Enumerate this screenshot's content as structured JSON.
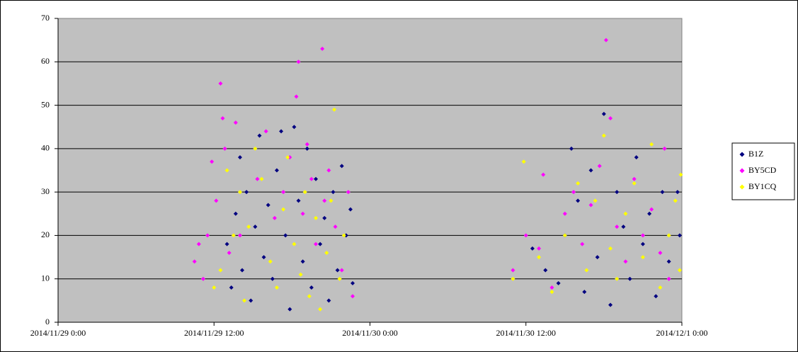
{
  "chart_data": {
    "type": "scatter",
    "xlim": [
      "2014/11/29 0:00",
      "2014/12/1 0:00"
    ],
    "xticks": [
      "2014/11/29 0:00",
      "2014/11/29 12:00",
      "2014/11/30 0:00",
      "2014/11/30 12:00",
      "2014/12/1 0:00"
    ],
    "ylim": [
      0,
      70
    ],
    "yticks": [
      0,
      10,
      20,
      30,
      40,
      50,
      60,
      70
    ],
    "grid": true,
    "legend": "right",
    "series": [
      {
        "name": "B1Z",
        "color": "#000080",
        "x": [
          "2014/11/29 13:00",
          "2014/11/29 13:20",
          "2014/11/29 13:40",
          "2014/11/29 14:00",
          "2014/11/29 14:10",
          "2014/11/29 14:30",
          "2014/11/29 14:50",
          "2014/11/29 15:10",
          "2014/11/29 15:30",
          "2014/11/29 15:50",
          "2014/11/29 16:10",
          "2014/11/29 16:30",
          "2014/11/29 16:50",
          "2014/11/29 17:10",
          "2014/11/29 17:30",
          "2014/11/29 17:50",
          "2014/11/29 18:10",
          "2014/11/29 18:30",
          "2014/11/29 18:50",
          "2014/11/29 19:10",
          "2014/11/29 19:30",
          "2014/11/29 19:50",
          "2014/11/29 20:10",
          "2014/11/29 20:30",
          "2014/11/29 20:50",
          "2014/11/29 21:10",
          "2014/11/29 21:30",
          "2014/11/29 21:50",
          "2014/11/29 22:10",
          "2014/11/29 22:30",
          "2014/11/29 22:40",
          "2014/11/30 12:30",
          "2014/11/30 13:30",
          "2014/11/30 14:30",
          "2014/11/30 15:00",
          "2014/11/30 15:30",
          "2014/11/30 16:00",
          "2014/11/30 16:30",
          "2014/11/30 17:00",
          "2014/11/30 17:30",
          "2014/11/30 18:00",
          "2014/11/30 18:30",
          "2014/11/30 19:00",
          "2014/11/30 19:30",
          "2014/11/30 20:00",
          "2014/11/30 20:30",
          "2014/11/30 21:00",
          "2014/11/30 21:30",
          "2014/11/30 22:00",
          "2014/11/30 22:30",
          "2014/11/30 23:00",
          "2014/11/30 23:40",
          "2014/11/30 23:50"
        ],
        "values": [
          18,
          8,
          25,
          38,
          12,
          30,
          5,
          22,
          43,
          15,
          27,
          10,
          35,
          44,
          20,
          3,
          45,
          28,
          14,
          40,
          8,
          33,
          18,
          24,
          5,
          30,
          12,
          36,
          20,
          26,
          9,
          17,
          12,
          9,
          20,
          40,
          28,
          7,
          35,
          15,
          48,
          4,
          30,
          22,
          10,
          38,
          18,
          25,
          6,
          30,
          14,
          30,
          20
        ]
      },
      {
        "name": "BY5CD",
        "color": "#ff00ff",
        "x": [
          "2014/11/29 10:30",
          "2014/11/29 10:50",
          "2014/11/29 11:10",
          "2014/11/29 11:30",
          "2014/11/29 11:50",
          "2014/11/29 12:10",
          "2014/11/29 12:30",
          "2014/11/29 12:40",
          "2014/11/29 12:50",
          "2014/11/29 13:10",
          "2014/11/29 13:40",
          "2014/11/29 14:00",
          "2014/11/29 15:20",
          "2014/11/29 16:00",
          "2014/11/29 16:40",
          "2014/11/29 17:20",
          "2014/11/29 17:50",
          "2014/11/29 18:20",
          "2014/11/29 18:30",
          "2014/11/29 18:50",
          "2014/11/29 19:10",
          "2014/11/29 19:30",
          "2014/11/29 19:50",
          "2014/11/29 20:20",
          "2014/11/29 20:30",
          "2014/11/29 20:50",
          "2014/11/29 21:20",
          "2014/11/29 21:50",
          "2014/11/29 22:20",
          "2014/11/29 22:40",
          "2014/11/30 11:00",
          "2014/11/30 12:00",
          "2014/11/30 13:00",
          "2014/11/30 13:20",
          "2014/11/30 14:00",
          "2014/11/30 15:00",
          "2014/11/30 15:40",
          "2014/11/30 16:20",
          "2014/11/30 17:00",
          "2014/11/30 17:40",
          "2014/11/30 18:10",
          "2014/11/30 18:30",
          "2014/11/30 19:00",
          "2014/11/30 19:40",
          "2014/11/30 20:20",
          "2014/11/30 21:00",
          "2014/11/30 21:40",
          "2014/11/30 22:20",
          "2014/11/30 22:40",
          "2014/11/30 23:00"
        ],
        "values": [
          14,
          18,
          10,
          20,
          37,
          28,
          55,
          47,
          40,
          16,
          46,
          20,
          33,
          44,
          24,
          30,
          38,
          52,
          60,
          25,
          41,
          33,
          18,
          63,
          28,
          35,
          22,
          12,
          30,
          6,
          12,
          20,
          17,
          34,
          8,
          25,
          30,
          18,
          27,
          36,
          65,
          47,
          22,
          14,
          33,
          20,
          26,
          16,
          40,
          10
        ]
      },
      {
        "name": "BY1CQ",
        "color": "#ffff00",
        "x": [
          "2014/11/29 12:00",
          "2014/11/29 12:30",
          "2014/11/29 13:00",
          "2014/11/29 13:30",
          "2014/11/29 14:00",
          "2014/11/29 14:20",
          "2014/11/29 14:40",
          "2014/11/29 15:10",
          "2014/11/29 15:40",
          "2014/11/29 16:20",
          "2014/11/29 16:50",
          "2014/11/29 17:20",
          "2014/11/29 17:40",
          "2014/11/29 18:10",
          "2014/11/29 18:40",
          "2014/11/29 19:00",
          "2014/11/29 19:20",
          "2014/11/29 19:50",
          "2014/11/29 20:10",
          "2014/11/29 20:40",
          "2014/11/29 21:00",
          "2014/11/29 21:15",
          "2014/11/29 21:40",
          "2014/11/29 22:00",
          "2014/11/30 11:00",
          "2014/11/30 11:50",
          "2014/11/30 13:00",
          "2014/11/30 14:00",
          "2014/11/30 15:00",
          "2014/11/30 16:00",
          "2014/11/30 16:40",
          "2014/11/30 17:20",
          "2014/11/30 18:00",
          "2014/11/30 18:30",
          "2014/11/30 19:00",
          "2014/11/30 19:40",
          "2014/11/30 20:20",
          "2014/11/30 21:00",
          "2014/11/30 21:40",
          "2014/11/30 22:20",
          "2014/11/30 23:00",
          "2014/11/30 23:30",
          "2014/11/30 23:50",
          "2014/11/30 23:55"
        ],
        "values": [
          8,
          12,
          35,
          20,
          30,
          5,
          22,
          40,
          33,
          14,
          8,
          26,
          38,
          18,
          11,
          30,
          6,
          24,
          3,
          16,
          28,
          49,
          10,
          20,
          10,
          37,
          15,
          7,
          20,
          32,
          12,
          28,
          43,
          17,
          10,
          25,
          32,
          15,
          41,
          8,
          20,
          28,
          12,
          34
        ]
      }
    ]
  }
}
